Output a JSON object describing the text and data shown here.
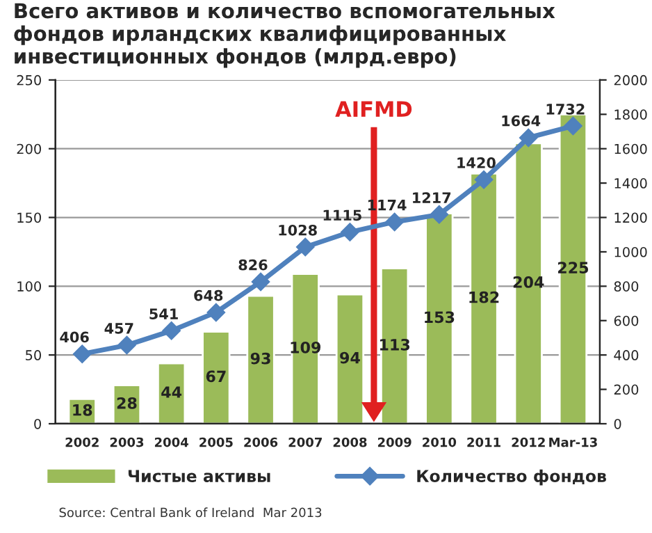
{
  "chart_data": {
    "type": "bar",
    "title": "Всего активов и количество вспомогательных фондов ирландских квалифицированных инвестиционных фондов (млрд.евро)",
    "categories": [
      "2002",
      "2003",
      "2004",
      "2005",
      "2006",
      "2007",
      "2008",
      "2009",
      "2010",
      "2011",
      "2012",
      "Mar-13"
    ],
    "series": [
      {
        "name": "Чистые активы",
        "color": "#9bbb59",
        "values": [
          18,
          28,
          44,
          67,
          93,
          109,
          94,
          113,
          153,
          182,
          204,
          225
        ]
      },
      {
        "name": "Количество фондов",
        "type": "line",
        "axis": "y2",
        "color": "#4f81bd",
        "marker": "diamond",
        "values": [
          406,
          457,
          541,
          648,
          826,
          1028,
          1115,
          1174,
          1217,
          1420,
          1664,
          1732
        ]
      }
    ],
    "ylim": [
      0,
      250
    ],
    "yticks": [
      0,
      50,
      100,
      150,
      200,
      250
    ],
    "y2lim": [
      0,
      2000
    ],
    "y2ticks": [
      0,
      200,
      400,
      600,
      800,
      1000,
      1200,
      1400,
      1600,
      1800,
      2000
    ],
    "grid": "y",
    "legend": "bottom",
    "data_labels": true,
    "annotations": [
      "AIFMD",
      "Source: Central Bank of Ireland  Mar 2013"
    ]
  }
}
